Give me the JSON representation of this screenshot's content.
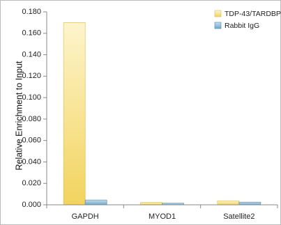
{
  "chart_data": {
    "type": "bar",
    "title": "",
    "xlabel": "",
    "ylabel": "Relative Enrichment to Input",
    "ylim": [
      0,
      0.18
    ],
    "yticks": [
      0.0,
      0.02,
      0.04,
      0.06,
      0.08,
      0.1,
      0.12,
      0.14,
      0.16,
      0.18
    ],
    "ytick_labels": [
      "0.000",
      "0.020",
      "0.040",
      "0.060",
      "0.080",
      "0.100",
      "0.120",
      "0.140",
      "0.160",
      "0.180"
    ],
    "categories": [
      "GAPDH",
      "MYOD1",
      "Satellite2"
    ],
    "series": [
      {
        "name": "TDP-43/TARDBP",
        "values": [
          0.17,
          0.0022,
          0.0038
        ]
      },
      {
        "name": "Rabbit IgG",
        "values": [
          0.0045,
          0.0015,
          0.0025
        ]
      }
    ],
    "grid": false,
    "legend_position": "top-right",
    "colors": {
      "TDP-43/TARDBP": {
        "light": "#fbefb4",
        "dark": "#f2d35e",
        "stroke": "#d9b94a"
      },
      "Rabbit IgG": {
        "light": "#aed0e4",
        "dark": "#6ea7c7",
        "stroke": "#4f87a8"
      },
      "axis": "#888888",
      "border": "#bbbbbb"
    }
  }
}
